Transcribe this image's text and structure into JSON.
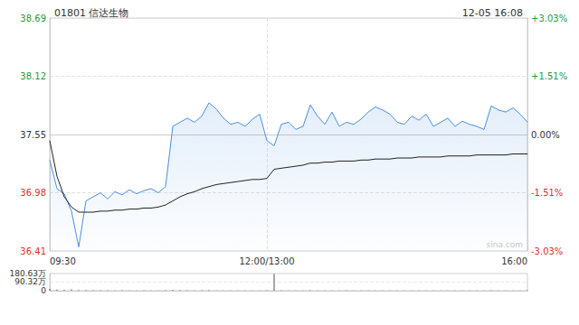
{
  "chart_data": [
    {
      "type": "line",
      "title": "01801 信达生物",
      "subtitle": "12-05 16:08",
      "annotation": "sina.com",
      "x": [
        0,
        5,
        10,
        15,
        20,
        25,
        30,
        35,
        40,
        45,
        50,
        55,
        60,
        65,
        70,
        75,
        80,
        85,
        90,
        95,
        100,
        105,
        110,
        115,
        120,
        125,
        130,
        135,
        140,
        145,
        150,
        155,
        160,
        165,
        170,
        175,
        180,
        185,
        190,
        195,
        200,
        205,
        210,
        215,
        220,
        225,
        230,
        235,
        240,
        245,
        250,
        255,
        260,
        265,
        270,
        275,
        280,
        285,
        290,
        295,
        300,
        305,
        310,
        315,
        320,
        325,
        330
      ],
      "xlim": [
        0,
        330
      ],
      "xticks": [
        {
          "value": 0,
          "label": "09:30"
        },
        {
          "value": 150,
          "label": "12:00/13:00"
        },
        {
          "value": 330,
          "label": "16:00"
        }
      ],
      "ylim": [
        36.41,
        38.69
      ],
      "yticks": [
        36.41,
        36.98,
        37.55,
        38.12,
        38.69
      ],
      "y2lim": [
        -3.03,
        3.03
      ],
      "y2ticks": [
        {
          "value": -3.03,
          "label": "-3.03%"
        },
        {
          "value": -1.51,
          "label": "-1.51%"
        },
        {
          "value": 0,
          "label": "0.00%"
        },
        {
          "value": 1.51,
          "label": "+1.51%"
        },
        {
          "value": 3.03,
          "label": "+3.03%"
        }
      ],
      "grid": true,
      "series": [
        {
          "type": "area",
          "color": "#4a8fe0",
          "values": [
            37.3,
            37.02,
            36.97,
            36.8,
            36.45,
            36.9,
            36.94,
            36.98,
            36.92,
            36.99,
            36.96,
            37.01,
            36.97,
            37.0,
            37.02,
            36.98,
            37.04,
            37.63,
            37.67,
            37.71,
            37.67,
            37.73,
            37.86,
            37.8,
            37.71,
            37.65,
            37.67,
            37.63,
            37.7,
            37.75,
            37.49,
            37.44,
            37.65,
            37.67,
            37.6,
            37.63,
            37.84,
            37.73,
            37.65,
            37.77,
            37.63,
            37.67,
            37.65,
            37.7,
            37.77,
            37.82,
            37.79,
            37.75,
            37.67,
            37.65,
            37.73,
            37.69,
            37.75,
            37.63,
            37.67,
            37.71,
            37.63,
            37.68,
            37.65,
            37.63,
            37.6,
            37.83,
            37.79,
            37.77,
            37.81,
            37.75,
            37.67
          ]
        },
        {
          "type": "line",
          "color": "#222222",
          "values": [
            37.49,
            37.14,
            36.94,
            36.84,
            36.79,
            36.79,
            36.79,
            36.8,
            36.8,
            36.81,
            36.81,
            36.82,
            36.82,
            36.83,
            36.83,
            36.84,
            36.86,
            36.9,
            36.94,
            36.97,
            36.99,
            37.02,
            37.04,
            37.06,
            37.07,
            37.08,
            37.09,
            37.1,
            37.11,
            37.11,
            37.12,
            37.21,
            37.22,
            37.23,
            37.24,
            37.25,
            37.27,
            37.27,
            37.28,
            37.28,
            37.29,
            37.29,
            37.29,
            37.3,
            37.3,
            37.31,
            37.31,
            37.31,
            37.32,
            37.32,
            37.32,
            37.33,
            37.33,
            37.33,
            37.33,
            37.34,
            37.34,
            37.34,
            37.34,
            37.35,
            37.35,
            37.35,
            37.35,
            37.35,
            37.36,
            37.36,
            37.36
          ]
        }
      ]
    },
    {
      "type": "bar",
      "x": [
        0,
        5,
        10,
        15,
        20,
        25,
        30,
        35,
        40,
        45,
        50,
        55,
        60,
        65,
        70,
        75,
        80,
        85,
        90,
        95,
        100,
        105,
        110,
        115,
        120,
        125,
        130,
        135,
        140,
        145,
        150,
        155,
        160,
        165,
        170,
        175,
        180,
        185,
        190,
        195,
        200,
        205,
        210,
        215,
        220,
        225,
        230,
        235,
        240,
        245,
        250,
        255,
        260,
        265,
        270,
        275,
        280,
        285,
        290,
        295,
        300,
        305,
        310,
        315,
        320,
        325,
        330
      ],
      "xlim": [
        0,
        330
      ],
      "ylim": [
        0,
        180.63
      ],
      "yticks": [
        0,
        {
          "value": 90.32,
          "label": "90.32万"
        },
        {
          "value": 180.63,
          "label": "180.63万"
        }
      ],
      "tick_labels": "y",
      "color": "#555555",
      "values": [
        18,
        12,
        9,
        14,
        8,
        6,
        5,
        4,
        5,
        3,
        4,
        3,
        3,
        4,
        3,
        3,
        5,
        10,
        6,
        4,
        3,
        4,
        6,
        3,
        3,
        2,
        3,
        2,
        2,
        3,
        4,
        178,
        4,
        3,
        2,
        3,
        5,
        3,
        2,
        3,
        2,
        4,
        2,
        2,
        3,
        2,
        2,
        3,
        2,
        2,
        3,
        2,
        2,
        3,
        2,
        2,
        2,
        3,
        2,
        2,
        2,
        4,
        2,
        2,
        3,
        3,
        8
      ]
    }
  ]
}
